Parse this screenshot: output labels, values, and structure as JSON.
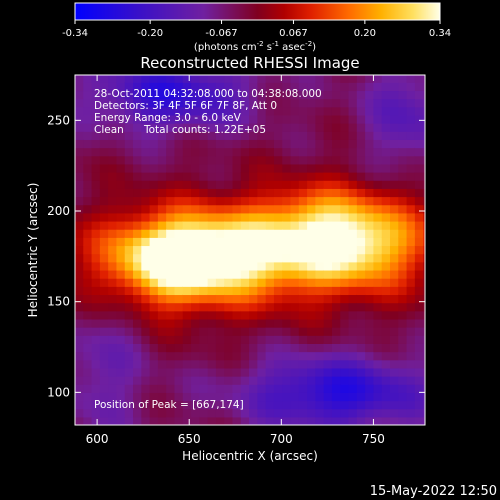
{
  "colorbar": {
    "ticks": [
      "-0.34",
      "-0.20",
      "-0.067",
      "0.067",
      "0.20",
      "0.34"
    ],
    "tick_values": [
      -0.34,
      -0.2,
      -0.067,
      0.067,
      0.2,
      0.34
    ],
    "min": -0.34,
    "max": 0.34,
    "units_main": "(photons cm",
    "units_sup1": "-2",
    "units_s": " s",
    "units_sup2": "-1",
    "units_asec": " asec",
    "units_sup3": "-2",
    "units_close": ")"
  },
  "chart_data": {
    "type": "heatmap",
    "title": "Reconstructed RHESSI Image",
    "xlabel": "Heliocentric X (arcsec)",
    "ylabel": "Heliocentric Y (arcsec)",
    "xlim": [
      588,
      778
    ],
    "ylim": [
      82,
      275
    ],
    "x_ticks": [
      600,
      650,
      700,
      750
    ],
    "y_ticks": [
      100,
      150,
      200,
      250
    ],
    "peak": {
      "x": 667,
      "y": 174
    },
    "ridge_slope": 0.15,
    "sources": [
      {
        "x": 667,
        "y": 176,
        "sx": 38,
        "sy": 16,
        "amp": 0.36
      },
      {
        "x": 640,
        "y": 172,
        "sx": 20,
        "sy": 16,
        "amp": 0.18
      },
      {
        "x": 740,
        "y": 183,
        "sx": 24,
        "sy": 17,
        "amp": 0.29
      },
      {
        "x": 712,
        "y": 197,
        "sx": 20,
        "sy": 12,
        "amp": 0.09
      }
    ],
    "negative_lobes": [
      {
        "x": 730,
        "y": 100,
        "sx": 35,
        "sy": 14,
        "amp": -0.22
      },
      {
        "x": 640,
        "y": 265,
        "sx": 30,
        "sy": 14,
        "amp": -0.2
      },
      {
        "x": 600,
        "y": 120,
        "sx": 20,
        "sy": 30,
        "amp": -0.1
      },
      {
        "x": 770,
        "y": 250,
        "sx": 18,
        "sy": 25,
        "amp": -0.12
      }
    ],
    "colormap": [
      "#0000ff",
      "#3a10c8",
      "#7020a0",
      "#800020",
      "#b00000",
      "#e02000",
      "#ff6a00",
      "#ffb000",
      "#ffe060",
      "#ffffe8"
    ],
    "colormap_stops": [
      -0.34,
      -0.22,
      -0.1,
      0.0,
      0.05,
      0.1,
      0.17,
      0.23,
      0.29,
      0.34
    ]
  },
  "info": {
    "time_range": "28-Oct-2011 04:32:08.000 to 04:38:08.000",
    "detectors": "Detectors: 3F 4F 5F 6F 7F 8F, Att 0",
    "energy": "Energy Range: 3.0 - 6.0 keV",
    "algorithm": "Clean",
    "counts": "Total counts: 1.22E+05",
    "peak_position": "Position of Peak = [667,174]"
  },
  "footer": {
    "date": "15-May-2022 12:50"
  }
}
